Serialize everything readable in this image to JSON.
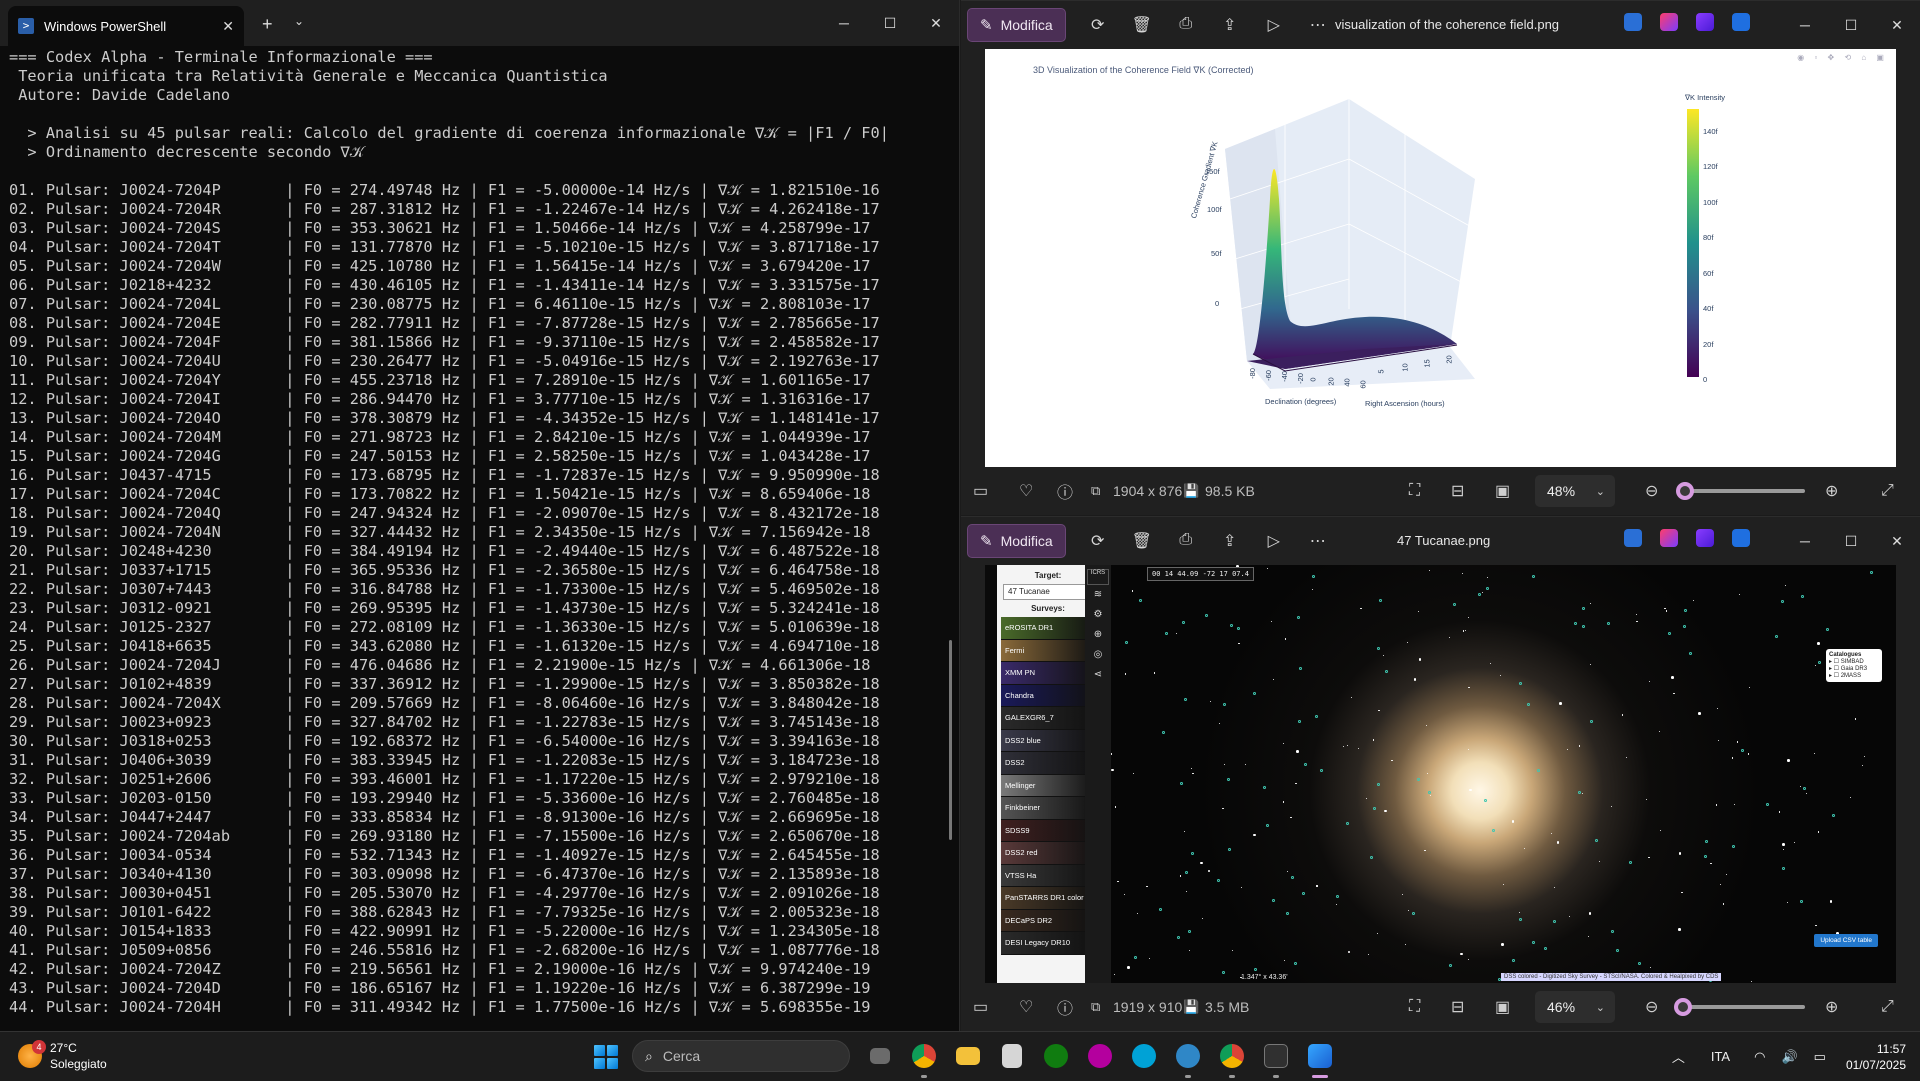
{
  "powershell": {
    "tab_title": "Windows PowerShell",
    "lines": [
      "=== Codex Alpha - Terminale Informazionale ===",
      " Teoria unificata tra Relatività Generale e Meccanica Quantistica",
      " Autore: Davide Cadelano",
      "",
      "  > Analisi su 45 pulsar reali: Calcolo del gradiente di coerenza informazionale ∇𝒦 = |F1 / F0|",
      "  > Ordinamento decrescente secondo ∇𝒦",
      "",
      "01. Pulsar: J0024-7204P       | F0 = 274.49748 Hz | F1 = -5.00000e-14 Hz/s | ∇𝒦 = 1.821510e-16",
      "02. Pulsar: J0024-7204R       | F0 = 287.31812 Hz | F1 = -1.22467e-14 Hz/s | ∇𝒦 = 4.262418e-17",
      "03. Pulsar: J0024-7204S       | F0 = 353.30621 Hz | F1 = 1.50466e-14 Hz/s | ∇𝒦 = 4.258799e-17",
      "04. Pulsar: J0024-7204T       | F0 = 131.77870 Hz | F1 = -5.10210e-15 Hz/s | ∇𝒦 = 3.871718e-17",
      "05. Pulsar: J0024-7204W       | F0 = 425.10780 Hz | F1 = 1.56415e-14 Hz/s | ∇𝒦 = 3.679420e-17",
      "06. Pulsar: J0218+4232        | F0 = 430.46105 Hz | F1 = -1.43411e-14 Hz/s | ∇𝒦 = 3.331575e-17",
      "07. Pulsar: J0024-7204L       | F0 = 230.08775 Hz | F1 = 6.46110e-15 Hz/s | ∇𝒦 = 2.808103e-17",
      "08. Pulsar: J0024-7204E       | F0 = 282.77911 Hz | F1 = -7.87728e-15 Hz/s | ∇𝒦 = 2.785665e-17",
      "09. Pulsar: J0024-7204F       | F0 = 381.15866 Hz | F1 = -9.37110e-15 Hz/s | ∇𝒦 = 2.458582e-17",
      "10. Pulsar: J0024-7204U       | F0 = 230.26477 Hz | F1 = -5.04916e-15 Hz/s | ∇𝒦 = 2.192763e-17",
      "11. Pulsar: J0024-7204Y       | F0 = 455.23718 Hz | F1 = 7.28910e-15 Hz/s | ∇𝒦 = 1.601165e-17",
      "12. Pulsar: J0024-7204I       | F0 = 286.94470 Hz | F1 = 3.77710e-15 Hz/s | ∇𝒦 = 1.316316e-17",
      "13. Pulsar: J0024-7204O       | F0 = 378.30879 Hz | F1 = -4.34352e-15 Hz/s | ∇𝒦 = 1.148141e-17",
      "14. Pulsar: J0024-7204M       | F0 = 271.98723 Hz | F1 = 2.84210e-15 Hz/s | ∇𝒦 = 1.044939e-17",
      "15. Pulsar: J0024-7204G       | F0 = 247.50153 Hz | F1 = 2.58250e-15 Hz/s | ∇𝒦 = 1.043428e-17",
      "16. Pulsar: J0437-4715        | F0 = 173.68795 Hz | F1 = -1.72837e-15 Hz/s | ∇𝒦 = 9.950990e-18",
      "17. Pulsar: J0024-7204C       | F0 = 173.70822 Hz | F1 = 1.50421e-15 Hz/s | ∇𝒦 = 8.659406e-18",
      "18. Pulsar: J0024-7204Q       | F0 = 247.94324 Hz | F1 = -2.09070e-15 Hz/s | ∇𝒦 = 8.432172e-18",
      "19. Pulsar: J0024-7204N       | F0 = 327.44432 Hz | F1 = 2.34350e-15 Hz/s | ∇𝒦 = 7.156942e-18",
      "20. Pulsar: J0248+4230        | F0 = 384.49194 Hz | F1 = -2.49440e-15 Hz/s | ∇𝒦 = 6.487522e-18",
      "21. Pulsar: J0337+1715        | F0 = 365.95336 Hz | F1 = -2.36580e-15 Hz/s | ∇𝒦 = 6.464758e-18",
      "22. Pulsar: J0307+7443        | F0 = 316.84788 Hz | F1 = -1.73300e-15 Hz/s | ∇𝒦 = 5.469502e-18",
      "23. Pulsar: J0312-0921        | F0 = 269.95395 Hz | F1 = -1.43730e-15 Hz/s | ∇𝒦 = 5.324241e-18",
      "24. Pulsar: J0125-2327        | F0 = 272.08109 Hz | F1 = -1.36330e-15 Hz/s | ∇𝒦 = 5.010639e-18",
      "25. Pulsar: J0418+6635        | F0 = 343.62080 Hz | F1 = -1.61320e-15 Hz/s | ∇𝒦 = 4.694710e-18",
      "26. Pulsar: J0024-7204J       | F0 = 476.04686 Hz | F1 = 2.21900e-15 Hz/s | ∇𝒦 = 4.661306e-18",
      "27. Pulsar: J0102+4839        | F0 = 337.36912 Hz | F1 = -1.29900e-15 Hz/s | ∇𝒦 = 3.850382e-18",
      "28. Pulsar: J0024-7204X       | F0 = 209.57669 Hz | F1 = -8.06460e-16 Hz/s | ∇𝒦 = 3.848042e-18",
      "29. Pulsar: J0023+0923        | F0 = 327.84702 Hz | F1 = -1.22783e-15 Hz/s | ∇𝒦 = 3.745143e-18",
      "30. Pulsar: J0318+0253        | F0 = 192.68372 Hz | F1 = -6.54000e-16 Hz/s | ∇𝒦 = 3.394163e-18",
      "31. Pulsar: J0406+3039        | F0 = 383.33945 Hz | F1 = -1.22083e-15 Hz/s | ∇𝒦 = 3.184723e-18",
      "32. Pulsar: J0251+2606        | F0 = 393.46001 Hz | F1 = -1.17220e-15 Hz/s | ∇𝒦 = 2.979210e-18",
      "33. Pulsar: J0203-0150        | F0 = 193.29940 Hz | F1 = -5.33600e-16 Hz/s | ∇𝒦 = 2.760485e-18",
      "34. Pulsar: J0447+2447        | F0 = 333.85834 Hz | F1 = -8.91300e-16 Hz/s | ∇𝒦 = 2.669695e-18",
      "35. Pulsar: J0024-7204ab      | F0 = 269.93180 Hz | F1 = -7.15500e-16 Hz/s | ∇𝒦 = 2.650670e-18",
      "36. Pulsar: J0034-0534        | F0 = 532.71343 Hz | F1 = -1.40927e-15 Hz/s | ∇𝒦 = 2.645455e-18",
      "37. Pulsar: J0340+4130        | F0 = 303.09098 Hz | F1 = -6.47370e-16 Hz/s | ∇𝒦 = 2.135893e-18",
      "38. Pulsar: J0030+0451        | F0 = 205.53070 Hz | F1 = -4.29770e-16 Hz/s | ∇𝒦 = 2.091026e-18",
      "39. Pulsar: J0101-6422        | F0 = 388.62843 Hz | F1 = -7.79325e-16 Hz/s | ∇𝒦 = 2.005323e-18",
      "40. Pulsar: J0154+1833        | F0 = 422.90991 Hz | F1 = -5.22000e-16 Hz/s | ∇𝒦 = 1.234305e-18",
      "41. Pulsar: J0509+0856        | F0 = 246.55816 Hz | F1 = -2.68200e-16 Hz/s | ∇𝒦 = 1.087776e-18",
      "42. Pulsar: J0024-7204Z       | F0 = 219.56561 Hz | F1 = 2.19000e-16 Hz/s | ∇𝒦 = 9.974240e-19",
      "43. Pulsar: J0024-7204D       | F0 = 186.65167 Hz | F1 = 1.19220e-16 Hz/s | ∇𝒦 = 6.387299e-19",
      "44. Pulsar: J0024-7204H       | F0 = 311.49342 Hz | F1 = 1.77500e-16 Hz/s | ∇𝒦 = 5.698355e-19"
    ]
  },
  "photo1": {
    "edit_label": "Modifica",
    "filename": "visualization of the coherence field.png",
    "dimensions": "1904 x 876",
    "size": "98.5 KB",
    "zoom": "48%",
    "zoom_fraction": 0.06,
    "chart": {
      "title": "3D Visualization of the Coherence Field ∇K (Corrected)",
      "zlabel": "Coherence Gradient ∇K",
      "xlabel": "Declination (degrees)",
      "ylabel": "Right Ascension (hours)",
      "colorbar_title": "∇K Intensity",
      "z_ticks": [
        "150f",
        "100f",
        "50f",
        "0"
      ],
      "colorbar_ticks": [
        "140f",
        "120f",
        "100f",
        "80f",
        "60f",
        "40f",
        "20f",
        "0"
      ],
      "x_ticks": [
        "-80",
        "-60",
        "-40",
        "-20",
        "0",
        "20",
        "40",
        "60"
      ],
      "y_ticks": [
        "5",
        "10",
        "15",
        "20"
      ]
    }
  },
  "photo2": {
    "edit_label": "Modifica",
    "filename": "47 Tucanae.png",
    "dimensions": "1919 x 910",
    "size": "3.5 MB",
    "zoom": "46%",
    "zoom_fraction": 0.05,
    "aladin": {
      "target_label": "Target:",
      "target_value": "47 Tucanae",
      "surveys_label": "Surveys:",
      "surveys": [
        "eROSITA DR1",
        "Fermi",
        "XMM PN",
        "Chandra",
        "GALEXGR6_7",
        "DSS2 blue",
        "DSS2",
        "Mellinger",
        "Finkbeiner",
        "SDSS9",
        "DSS2 red",
        "VTSS Ha",
        "PanSTARRS DR1 color",
        "DECaPS DR2",
        "DESI Legacy DR10"
      ],
      "frame": "ICRS",
      "coords": "00 14 44.09 -72 17 07.4",
      "catalogues_title": "Catalogues",
      "catalogues": [
        "SIMBAD",
        "Gaia DR3",
        "2MASS"
      ],
      "upload": "Upload CSV table",
      "fov": "1.347° x 43.36'",
      "credit": "DSS colored - Digitized Sky Survey - STScI/NASA. Colored & Healpixed by CDS"
    }
  },
  "taskbar": {
    "temp": "27°C",
    "weather": "Soleggiato",
    "badge": "4",
    "search_placeholder": "Cerca",
    "lang": "ITA",
    "time": "11:57",
    "date": "01/07/2025"
  }
}
